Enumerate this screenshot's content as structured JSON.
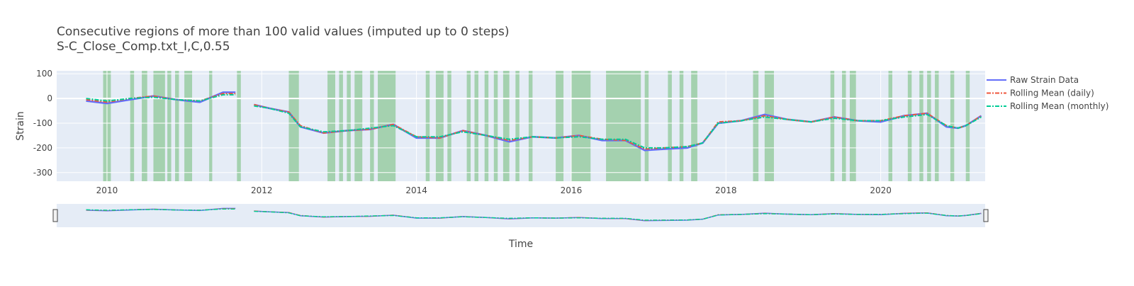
{
  "chart_data": {
    "type": "line",
    "title": "Consecutive regions of more than 100 valid values (imputed up to 0 steps)",
    "subtitle": "S-C_Close_Comp.txt_I,C,0.55",
    "xlabel": "Time",
    "ylabel": "Strain",
    "xlim": [
      2009.35,
      2021.35
    ],
    "ylim": [
      -335,
      112
    ],
    "x_ticks": [
      2010,
      2012,
      2014,
      2016,
      2018,
      2020
    ],
    "y_ticks": [
      100,
      0,
      -100,
      -200,
      -300
    ],
    "grid": true,
    "legend_position": "right",
    "colors": {
      "raw": "#636efa",
      "daily": "#ef553b",
      "monthly": "#00cc96",
      "highlight": "#2ca02c",
      "plot_bg": "#e5ecf6"
    },
    "series": [
      {
        "name": "Raw Strain Data",
        "style": "solid",
        "x": [
          2009.73,
          2010.0,
          2010.3,
          2010.6,
          2010.9,
          2011.2,
          2011.5,
          2011.66,
          2011.7,
          2011.9,
          2012.1,
          2012.35,
          2012.5,
          2012.8,
          2013.1,
          2013.4,
          2013.7,
          2014.0,
          2014.3,
          2014.6,
          2014.9,
          2015.2,
          2015.5,
          2015.8,
          2016.1,
          2016.4,
          2016.7,
          2016.95,
          2017.2,
          2017.5,
          2017.7,
          2017.9,
          2018.2,
          2018.5,
          2018.8,
          2019.1,
          2019.4,
          2019.7,
          2020.0,
          2020.3,
          2020.6,
          2020.85,
          2021.0,
          2021.1,
          2021.3
        ],
        "y": [
          -10,
          -20,
          -5,
          10,
          -5,
          -15,
          25,
          25,
          null,
          -25,
          -40,
          -55,
          -115,
          -140,
          -130,
          -125,
          -105,
          -160,
          -160,
          -130,
          -150,
          -175,
          -155,
          -160,
          -150,
          -170,
          -170,
          -210,
          -205,
          -200,
          -180,
          -100,
          -90,
          -65,
          -85,
          -95,
          -75,
          -90,
          -95,
          -70,
          -60,
          -115,
          -120,
          -110,
          -70
        ]
      },
      {
        "name": "Rolling Mean (daily)",
        "style": "dashdot",
        "x": [
          2009.73,
          2010.0,
          2010.3,
          2010.6,
          2010.9,
          2011.2,
          2011.5,
          2011.66,
          2011.7,
          2011.9,
          2012.1,
          2012.35,
          2012.5,
          2012.8,
          2013.1,
          2013.4,
          2013.7,
          2014.0,
          2014.3,
          2014.6,
          2014.9,
          2015.2,
          2015.5,
          2015.8,
          2016.1,
          2016.4,
          2016.7,
          2016.95,
          2017.2,
          2017.5,
          2017.7,
          2017.9,
          2018.2,
          2018.5,
          2018.8,
          2019.1,
          2019.4,
          2019.7,
          2020.0,
          2020.3,
          2020.6,
          2020.85,
          2021.0,
          2021.1,
          2021.3
        ],
        "y": [
          -5,
          -15,
          0,
          10,
          -5,
          -10,
          20,
          20,
          null,
          -25,
          -40,
          -55,
          -110,
          -140,
          -130,
          -125,
          -105,
          -155,
          -160,
          -130,
          -150,
          -170,
          -155,
          -160,
          -150,
          -165,
          -170,
          -205,
          -200,
          -195,
          -180,
          -95,
          -90,
          -70,
          -85,
          -95,
          -75,
          -90,
          -90,
          -70,
          -60,
          -110,
          -120,
          -110,
          -70
        ]
      },
      {
        "name": "Rolling Mean (monthly)",
        "style": "dashdot",
        "x": [
          2009.73,
          2010.0,
          2010.3,
          2010.6,
          2010.9,
          2011.2,
          2011.5,
          2011.66,
          2011.7,
          2011.9,
          2012.1,
          2012.35,
          2012.5,
          2012.8,
          2013.1,
          2013.4,
          2013.7,
          2014.0,
          2014.3,
          2014.6,
          2014.9,
          2015.2,
          2015.5,
          2015.8,
          2016.1,
          2016.4,
          2016.7,
          2016.95,
          2017.2,
          2017.5,
          2017.7,
          2017.9,
          2018.2,
          2018.5,
          2018.8,
          2019.1,
          2019.4,
          2019.7,
          2020.0,
          2020.3,
          2020.6,
          2020.85,
          2021.0,
          2021.1,
          2021.3
        ],
        "y": [
          0,
          -10,
          0,
          5,
          -5,
          -10,
          15,
          15,
          null,
          -30,
          -40,
          -60,
          -115,
          -135,
          -130,
          -120,
          -110,
          -155,
          -155,
          -135,
          -150,
          -165,
          -155,
          -160,
          -155,
          -165,
          -165,
          -200,
          -200,
          -195,
          -180,
          -100,
          -90,
          -75,
          -85,
          -95,
          -80,
          -90,
          -90,
          -75,
          -65,
          -110,
          -120,
          -110,
          -75
        ]
      }
    ],
    "highlight_regions": [
      [
        2009.95,
        2010.05
      ],
      [
        2010.3,
        2010.35
      ],
      [
        2010.45,
        2010.52
      ],
      [
        2010.6,
        2010.75
      ],
      [
        2010.78,
        2010.83
      ],
      [
        2010.88,
        2010.93
      ],
      [
        2011.0,
        2011.1
      ],
      [
        2011.32,
        2011.36
      ],
      [
        2011.68,
        2011.73
      ],
      [
        2012.35,
        2012.48
      ],
      [
        2012.85,
        2012.95
      ],
      [
        2013.0,
        2013.05
      ],
      [
        2013.1,
        2013.15
      ],
      [
        2013.2,
        2013.3
      ],
      [
        2013.4,
        2013.45
      ],
      [
        2013.5,
        2013.73
      ],
      [
        2014.12,
        2014.17
      ],
      [
        2014.25,
        2014.35
      ],
      [
        2014.4,
        2014.45
      ],
      [
        2014.65,
        2014.7
      ],
      [
        2014.75,
        2014.8
      ],
      [
        2014.88,
        2014.93
      ],
      [
        2015.0,
        2015.05
      ],
      [
        2015.12,
        2015.2
      ],
      [
        2015.28,
        2015.33
      ],
      [
        2015.45,
        2015.5
      ],
      [
        2015.8,
        2015.9
      ],
      [
        2016.0,
        2016.25
      ],
      [
        2016.45,
        2016.9
      ],
      [
        2016.95,
        2017.0
      ],
      [
        2017.25,
        2017.3
      ],
      [
        2017.4,
        2017.45
      ],
      [
        2017.55,
        2017.63
      ],
      [
        2018.35,
        2018.42
      ],
      [
        2018.5,
        2018.62
      ],
      [
        2019.35,
        2019.4
      ],
      [
        2019.5,
        2019.55
      ],
      [
        2019.6,
        2019.68
      ],
      [
        2020.1,
        2020.15
      ],
      [
        2020.35,
        2020.4
      ],
      [
        2020.5,
        2020.55
      ],
      [
        2020.6,
        2020.65
      ],
      [
        2020.7,
        2020.75
      ],
      [
        2020.9,
        2020.95
      ],
      [
        2021.1,
        2021.15
      ]
    ],
    "range_slider": true
  }
}
